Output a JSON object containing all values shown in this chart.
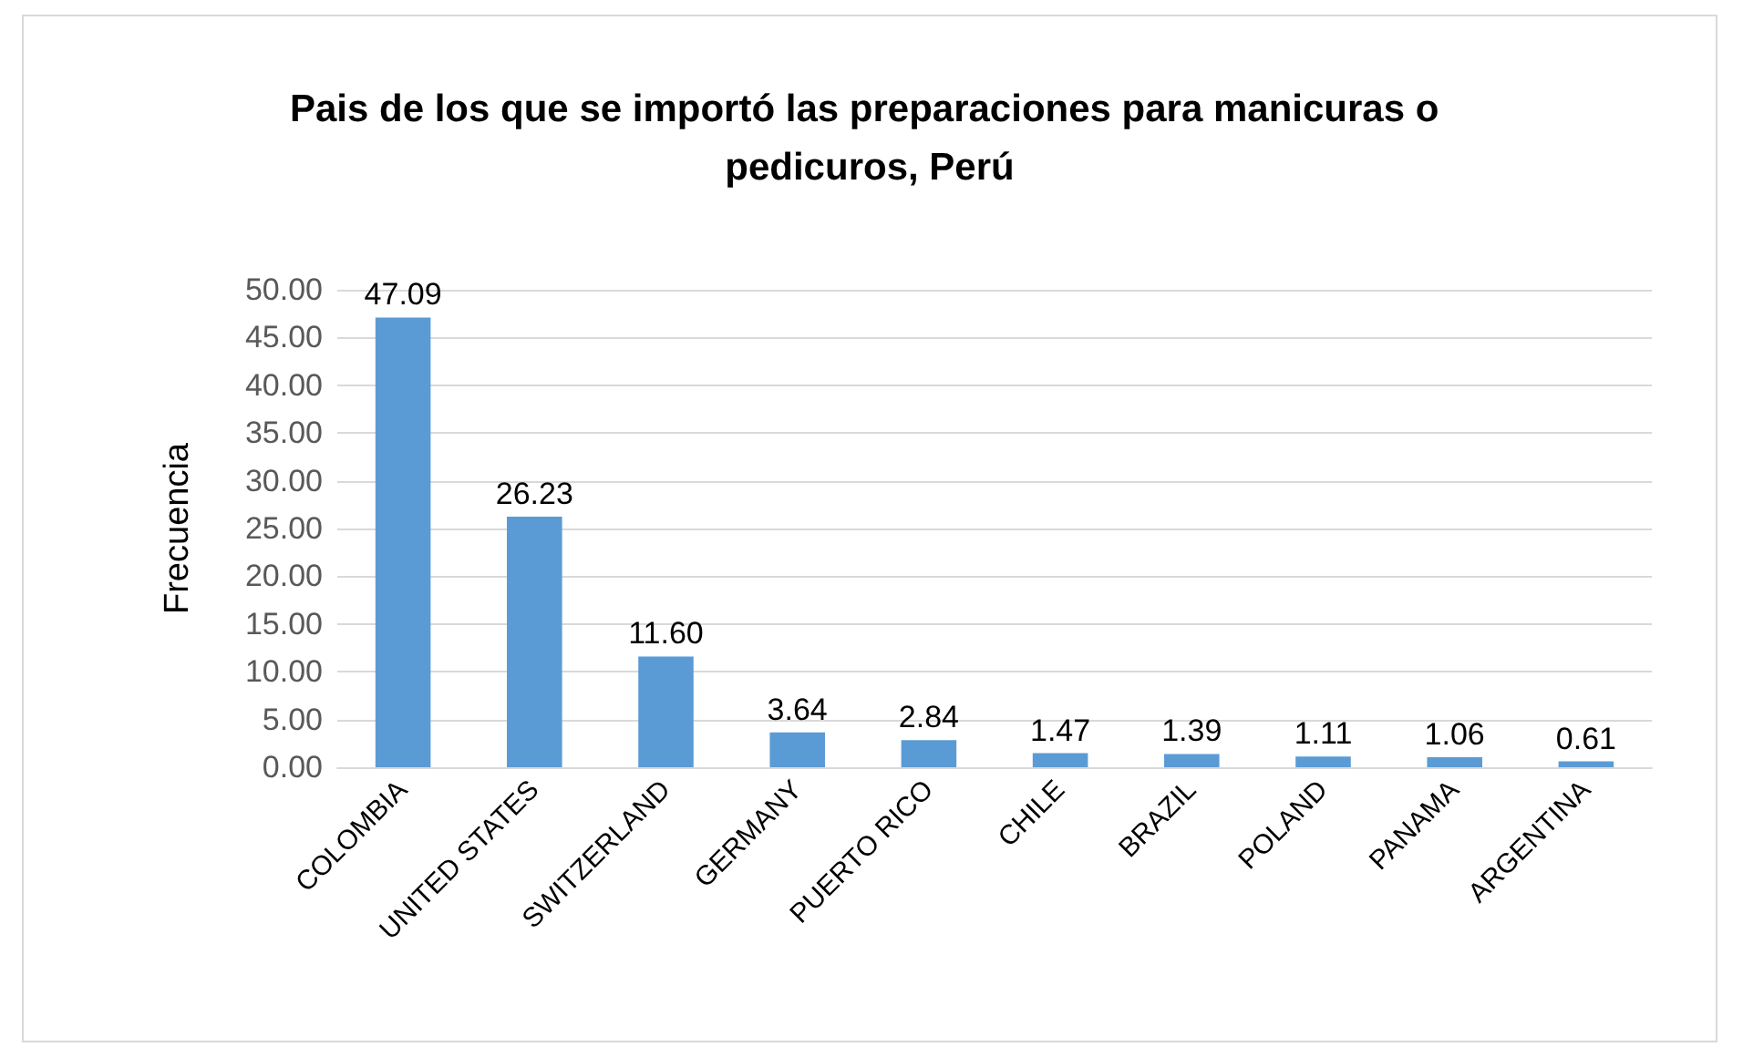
{
  "chart_data": {
    "type": "bar",
    "title": "Pais de los que se importó las preparaciones para manicuras o pedicuros, Perú",
    "ylabel": "Frecuencia",
    "categories": [
      "COLOMBIA",
      "UNITED STATES",
      "SWITZERLAND",
      "GERMANY",
      "PUERTO RICO",
      "CHILE",
      "BRAZIL",
      "POLAND",
      "PANAMA",
      "ARGENTINA"
    ],
    "values": [
      47.09,
      26.23,
      11.6,
      3.64,
      2.84,
      1.47,
      1.39,
      1.11,
      1.06,
      0.61
    ],
    "value_labels": [
      "47.09",
      "26.23",
      "11.60",
      "3.64",
      "2.84",
      "1.47",
      "1.39",
      "1.11",
      "1.06",
      "0.61"
    ],
    "color": "#5b9bd5",
    "ylim": [
      0,
      50
    ],
    "yticks": [
      {
        "value": 0,
        "label": "0.00"
      },
      {
        "value": 5,
        "label": "5.00"
      },
      {
        "value": 10,
        "label": "10.00"
      },
      {
        "value": 15,
        "label": "15.00"
      },
      {
        "value": 20,
        "label": "20.00"
      },
      {
        "value": 25,
        "label": "25.00"
      },
      {
        "value": 30,
        "label": "30.00"
      },
      {
        "value": 35,
        "label": "35.00"
      },
      {
        "value": 40,
        "label": "40.00"
      },
      {
        "value": 45,
        "label": "45.00"
      },
      {
        "value": 50,
        "label": "50.00"
      }
    ],
    "grid": "y"
  }
}
